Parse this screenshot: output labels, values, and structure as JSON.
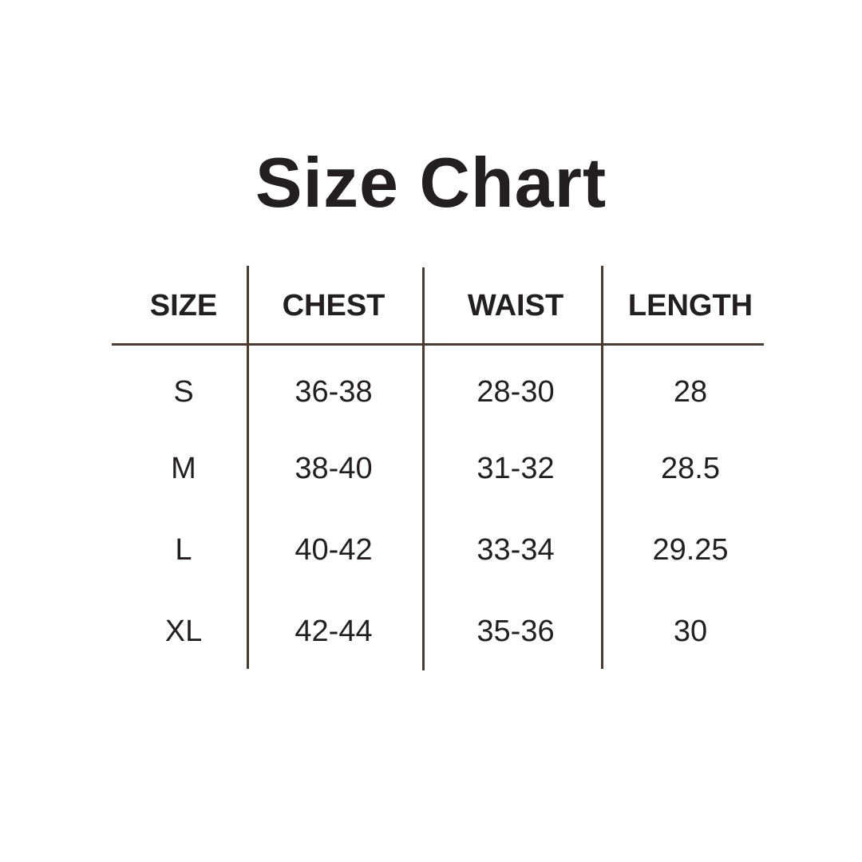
{
  "title": "Size Chart",
  "line_color": "#4a3a30",
  "text_color": "#231f20",
  "table": {
    "headers": [
      "SIZE",
      "CHEST",
      "WAIST",
      "LENGTH"
    ],
    "rows": [
      [
        "S",
        "36-38",
        "28-30",
        "28"
      ],
      [
        "M",
        "38-40",
        "31-32",
        "28.5"
      ],
      [
        "L",
        "40-42",
        "33-34",
        "29.25"
      ],
      [
        "XL",
        "42-44",
        "35-36",
        "30"
      ]
    ]
  }
}
